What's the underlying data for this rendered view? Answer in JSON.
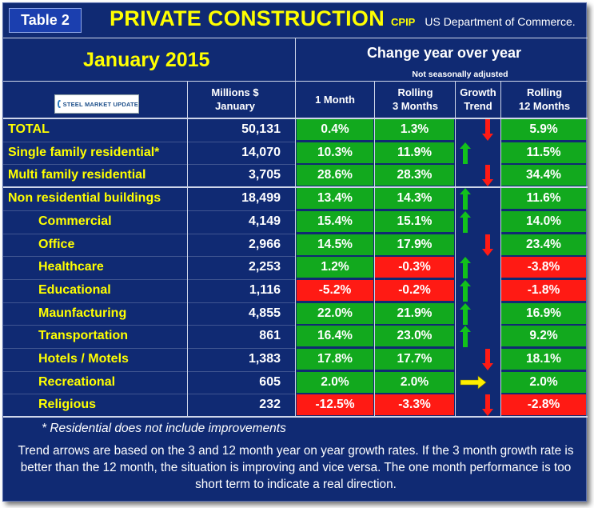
{
  "header": {
    "table_label": "Table 2",
    "title": "PRIVATE CONSTRUCTION",
    "title_suffix": "CPIP",
    "source": "US Department of Commerce.",
    "period": "January 2015",
    "change_heading": "Change year over year",
    "not_seasonally_adjusted": "Not seasonally adjusted",
    "logo_text": "STEEL MARKET UPDATE"
  },
  "columns": {
    "millions": "Millions $",
    "millions_sub": "January",
    "one_month": "1 Month",
    "rolling3": "Rolling",
    "rolling3_sub": "3 Months",
    "growth": "Growth",
    "growth_sub": "Trend",
    "rolling12": "Rolling",
    "rolling12_sub": "12 Months"
  },
  "colors": {
    "positive": "#12a91e",
    "negative": "#ff1a14",
    "up_arrow": "#12c21b",
    "down_arrow": "#ff1a14",
    "flat_arrow": "#ffee00",
    "label": "#ffff00",
    "background": "#102a73"
  },
  "rows": [
    {
      "label": "TOTAL",
      "millions": "50,131",
      "one_month": "0.4%",
      "rolling3": "1.3%",
      "trend": "down",
      "rolling12": "5.9%"
    },
    {
      "label": "Single family residential*",
      "millions": "14,070",
      "one_month": "10.3%",
      "rolling3": "11.9%",
      "trend": "up",
      "rolling12": "11.5%"
    },
    {
      "label": "Multi family residential",
      "millions": "3,705",
      "one_month": "28.6%",
      "rolling3": "28.3%",
      "trend": "down",
      "rolling12": "34.4%"
    },
    {
      "label": "Non residential buildings",
      "millions": "18,499",
      "one_month": "13.4%",
      "rolling3": "14.3%",
      "trend": "up",
      "rolling12": "11.6%"
    },
    {
      "label": "Commercial",
      "millions": "4,149",
      "one_month": "15.4%",
      "rolling3": "15.1%",
      "trend": "up",
      "rolling12": "14.0%"
    },
    {
      "label": "Office",
      "millions": "2,966",
      "one_month": "14.5%",
      "rolling3": "17.9%",
      "trend": "down",
      "rolling12": "23.4%"
    },
    {
      "label": "Healthcare",
      "millions": "2,253",
      "one_month": "1.2%",
      "rolling3": "-0.3%",
      "trend": "up",
      "rolling12": "-3.8%"
    },
    {
      "label": "Educational",
      "millions": "1,116",
      "one_month": "-5.2%",
      "rolling3": "-0.2%",
      "trend": "up",
      "rolling12": "-1.8%"
    },
    {
      "label": "Maunfacturing",
      "millions": "4,855",
      "one_month": "22.0%",
      "rolling3": "21.9%",
      "trend": "up",
      "rolling12": "16.9%"
    },
    {
      "label": "Transportation",
      "millions": "861",
      "one_month": "16.4%",
      "rolling3": "23.0%",
      "trend": "up",
      "rolling12": "9.2%"
    },
    {
      "label": "Hotels / Motels",
      "millions": "1,383",
      "one_month": "17.8%",
      "rolling3": "17.7%",
      "trend": "down",
      "rolling12": "18.1%"
    },
    {
      "label": "Recreational",
      "millions": "605",
      "one_month": "2.0%",
      "rolling3": "2.0%",
      "trend": "flat",
      "rolling12": "2.0%"
    },
    {
      "label": "Religious",
      "millions": "232",
      "one_month": "-12.5%",
      "rolling3": "-3.3%",
      "trend": "down",
      "rolling12": "-2.8%"
    }
  ],
  "footnote": "* Residential does not include improvements",
  "explanation": "Trend arrows are based on the 3 and 12 month year on year growth rates. If the 3 month growth rate is better than the 12 month, the situation is improving and vice versa. The one month performance is too short term to indicate a real direction."
}
